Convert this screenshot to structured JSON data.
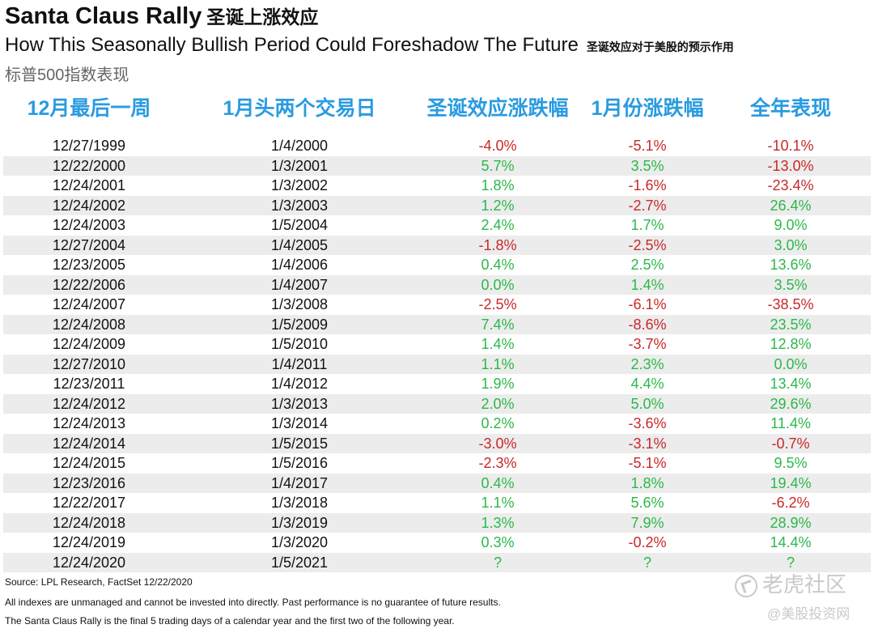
{
  "header": {
    "title_en": "Santa Claus Rally",
    "title_cn": "圣诞上涨效应",
    "subtitle_en": "How This Seasonally Bullish Period Could Foreshadow The Future",
    "subtitle_cn": "圣诞效应对于美股的预示作用",
    "index_label": "标普500指数表现"
  },
  "chart_data": {
    "type": "table",
    "columns": [
      "12月最后一周",
      "1月头两个交易日",
      "圣诞效应涨跌幅",
      "1月份涨跌幅",
      "全年表现"
    ],
    "rows": [
      [
        "12/27/1999",
        "1/4/2000",
        "-4.0%",
        "-5.1%",
        "-10.1%"
      ],
      [
        "12/22/2000",
        "1/3/2001",
        "5.7%",
        "3.5%",
        "-13.0%"
      ],
      [
        "12/24/2001",
        "1/3/2002",
        "1.8%",
        "-1.6%",
        "-23.4%"
      ],
      [
        "12/24/2002",
        "1/3/2003",
        "1.2%",
        "-2.7%",
        "26.4%"
      ],
      [
        "12/24/2003",
        "1/5/2004",
        "2.4%",
        "1.7%",
        "9.0%"
      ],
      [
        "12/27/2004",
        "1/4/2005",
        "-1.8%",
        "-2.5%",
        "3.0%"
      ],
      [
        "12/23/2005",
        "1/4/2006",
        "0.4%",
        "2.5%",
        "13.6%"
      ],
      [
        "12/22/2006",
        "1/4/2007",
        "0.0%",
        "1.4%",
        "3.5%"
      ],
      [
        "12/24/2007",
        "1/3/2008",
        "-2.5%",
        "-6.1%",
        "-38.5%"
      ],
      [
        "12/24/2008",
        "1/5/2009",
        "7.4%",
        "-8.6%",
        "23.5%"
      ],
      [
        "12/24/2009",
        "1/5/2010",
        "1.4%",
        "-3.7%",
        "12.8%"
      ],
      [
        "12/27/2010",
        "1/4/2011",
        "1.1%",
        "2.3%",
        "0.0%"
      ],
      [
        "12/23/2011",
        "1/4/2012",
        "1.9%",
        "4.4%",
        "13.4%"
      ],
      [
        "12/24/2012",
        "1/3/2013",
        "2.0%",
        "5.0%",
        "29.6%"
      ],
      [
        "12/24/2013",
        "1/3/2014",
        "0.2%",
        "-3.6%",
        "11.4%"
      ],
      [
        "12/24/2014",
        "1/5/2015",
        "-3.0%",
        "-3.1%",
        "-0.7%"
      ],
      [
        "12/24/2015",
        "1/5/2016",
        "-2.3%",
        "-5.1%",
        "9.5%"
      ],
      [
        "12/23/2016",
        "1/4/2017",
        "0.4%",
        "1.8%",
        "19.4%"
      ],
      [
        "12/22/2017",
        "1/3/2018",
        "1.1%",
        "5.6%",
        "-6.2%"
      ],
      [
        "12/24/2018",
        "1/3/2019",
        "1.3%",
        "7.9%",
        "28.9%"
      ],
      [
        "12/24/2019",
        "1/3/2020",
        "0.3%",
        "-0.2%",
        "14.4%"
      ],
      [
        "12/24/2020",
        "1/5/2021",
        "?",
        "?",
        "?"
      ]
    ],
    "colors": {
      "header": "#2a9be0",
      "positive": "#2bb84a",
      "negative": "#c8282a",
      "row_alt": "#ececec"
    }
  },
  "footer": {
    "source": "Source: LPL Research, FactSet 12/22/2020",
    "disclaimer": "All indexes are unmanaged and cannot be invested into directly. Past performance is no guarantee of future results.",
    "definition": "The Santa Claus Rally is the final 5 trading days of a calendar year and the first two of the following year."
  },
  "watermark": {
    "brand": "老虎社区",
    "handle": "@美股投资网"
  }
}
